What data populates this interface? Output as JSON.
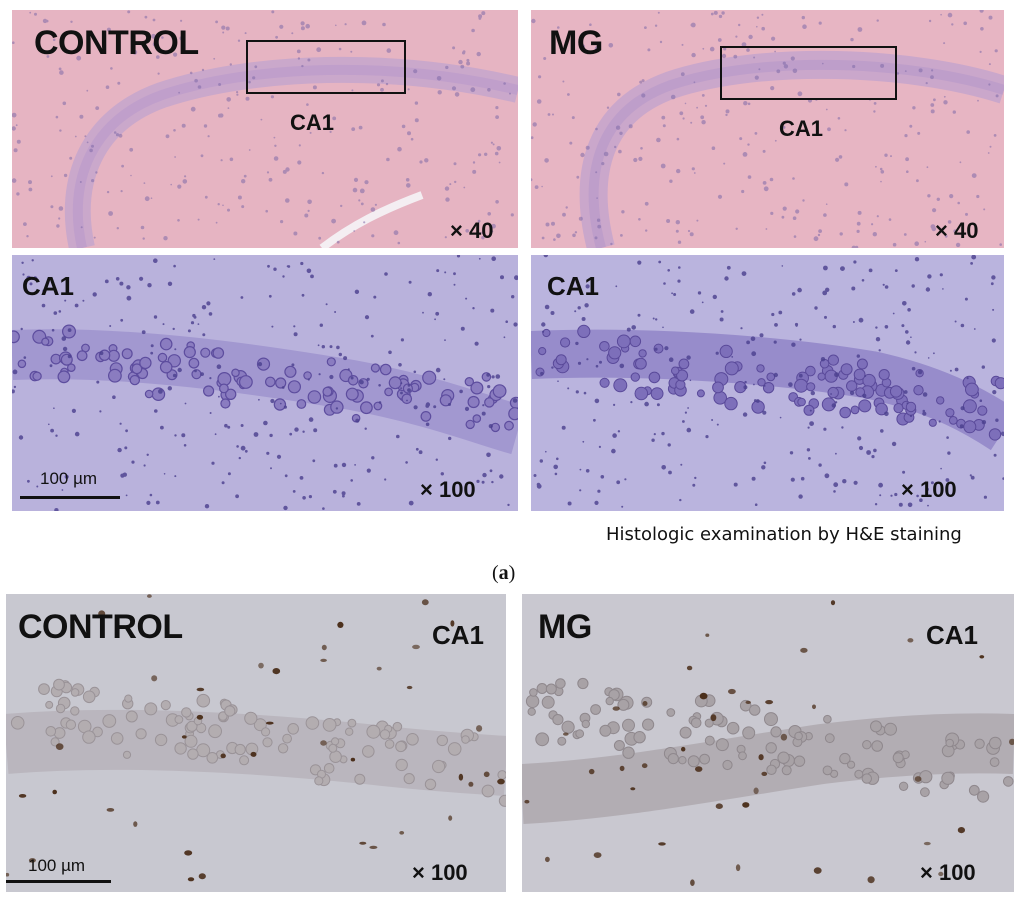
{
  "panels": {
    "he_control_40": {
      "title": "CONTROL",
      "region": "CA1",
      "magnification": "× 40"
    },
    "he_mg_40": {
      "title": "MG",
      "region": "CA1",
      "magnification": "× 40"
    },
    "he_control_100": {
      "region": "CA1",
      "magnification": "× 100",
      "scale_bar": "100 µm"
    },
    "he_mg_100": {
      "region": "CA1",
      "magnification": "× 100"
    },
    "ihc_control_100": {
      "title": "CONTROL",
      "region": "CA1",
      "magnification": "× 100",
      "scale_bar": "100 µm"
    },
    "ihc_mg_100": {
      "title": "MG",
      "region": "CA1",
      "magnification": "× 100"
    }
  },
  "caption_he": "Histologic examination by H&E staining",
  "figure_label": {
    "open": "(",
    "letter": "a",
    "close": ")"
  },
  "colors": {
    "he_low_background": "#e7b6c4",
    "he_high_background": "#b9b2dd",
    "ihc_background": "#c9c8d0",
    "nuclei_purple": "#5d4d9e",
    "dab_brown": "#4a2e1a"
  }
}
